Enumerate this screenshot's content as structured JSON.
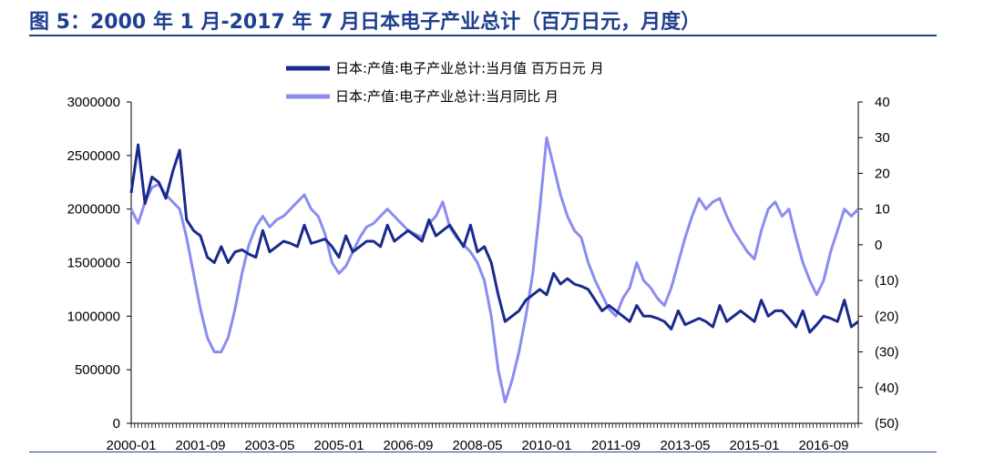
{
  "title": "图 5：2000 年 1 月-2017 年 7 月日本电子产业总计（百万日元，月度）",
  "colors": {
    "title": "#1f3f8f",
    "series_value": "#1a2a8c",
    "series_yoy": "#8a8cf0",
    "negative_tick": "#cc0000"
  },
  "chart_data": {
    "type": "line",
    "title": "图 5：2000 年 1 月-2017 年 7 月日本电子产业总计（百万日元，月度）",
    "x_range": [
      "2000-01",
      "2017-07"
    ],
    "x_tick_labels": [
      "2000-01",
      "2001-09",
      "2003-05",
      "2005-01",
      "2006-09",
      "2008-05",
      "2010-01",
      "2011-09",
      "2013-05",
      "2015-01",
      "2016-09"
    ],
    "y_left": {
      "range": [
        0,
        3000000
      ],
      "ticks": [
        "0",
        "500000",
        "1000000",
        "1500000",
        "2000000",
        "2500000",
        "3000000"
      ]
    },
    "y_right": {
      "range": [
        -50,
        40
      ],
      "ticks": [
        "(50)",
        "(40)",
        "(30)",
        "(20)",
        "(10)",
        "0",
        "10",
        "20",
        "30",
        "40"
      ]
    },
    "legend_position": "top-center",
    "grid": false,
    "series": [
      {
        "name": "日本:产值:电子产业总计:当月值 百万日元 月",
        "axis": "left",
        "points": [
          [
            "2000-01",
            2150000
          ],
          [
            "2000-03",
            2600000
          ],
          [
            "2000-05",
            2050000
          ],
          [
            "2000-07",
            2300000
          ],
          [
            "2000-09",
            2250000
          ],
          [
            "2000-11",
            2100000
          ],
          [
            "2001-01",
            2350000
          ],
          [
            "2001-03",
            2550000
          ],
          [
            "2001-05",
            1900000
          ],
          [
            "2001-07",
            1800000
          ],
          [
            "2001-09",
            1750000
          ],
          [
            "2001-11",
            1550000
          ],
          [
            "2002-01",
            1500000
          ],
          [
            "2002-03",
            1650000
          ],
          [
            "2002-05",
            1500000
          ],
          [
            "2002-07",
            1600000
          ],
          [
            "2002-09",
            1620000
          ],
          [
            "2002-11",
            1580000
          ],
          [
            "2003-01",
            1550000
          ],
          [
            "2003-03",
            1800000
          ],
          [
            "2003-05",
            1600000
          ],
          [
            "2003-07",
            1650000
          ],
          [
            "2003-09",
            1700000
          ],
          [
            "2003-11",
            1680000
          ],
          [
            "2004-01",
            1650000
          ],
          [
            "2004-03",
            1850000
          ],
          [
            "2004-05",
            1680000
          ],
          [
            "2004-07",
            1700000
          ],
          [
            "2004-09",
            1720000
          ],
          [
            "2004-11",
            1650000
          ],
          [
            "2005-01",
            1550000
          ],
          [
            "2005-03",
            1750000
          ],
          [
            "2005-05",
            1600000
          ],
          [
            "2005-07",
            1650000
          ],
          [
            "2005-09",
            1700000
          ],
          [
            "2005-11",
            1700000
          ],
          [
            "2006-01",
            1650000
          ],
          [
            "2006-03",
            1850000
          ],
          [
            "2006-05",
            1700000
          ],
          [
            "2006-07",
            1750000
          ],
          [
            "2006-09",
            1800000
          ],
          [
            "2006-11",
            1750000
          ],
          [
            "2007-01",
            1700000
          ],
          [
            "2007-03",
            1900000
          ],
          [
            "2007-05",
            1750000
          ],
          [
            "2007-07",
            1800000
          ],
          [
            "2007-09",
            1850000
          ],
          [
            "2007-11",
            1750000
          ],
          [
            "2008-01",
            1650000
          ],
          [
            "2008-03",
            1850000
          ],
          [
            "2008-05",
            1600000
          ],
          [
            "2008-07",
            1650000
          ],
          [
            "2008-09",
            1500000
          ],
          [
            "2008-11",
            1200000
          ],
          [
            "2009-01",
            950000
          ],
          [
            "2009-03",
            1000000
          ],
          [
            "2009-05",
            1050000
          ],
          [
            "2009-07",
            1150000
          ],
          [
            "2009-09",
            1200000
          ],
          [
            "2009-11",
            1250000
          ],
          [
            "2010-01",
            1200000
          ],
          [
            "2010-03",
            1400000
          ],
          [
            "2010-05",
            1300000
          ],
          [
            "2010-07",
            1350000
          ],
          [
            "2010-09",
            1300000
          ],
          [
            "2010-11",
            1280000
          ],
          [
            "2011-01",
            1250000
          ],
          [
            "2011-03",
            1150000
          ],
          [
            "2011-05",
            1050000
          ],
          [
            "2011-07",
            1100000
          ],
          [
            "2011-09",
            1050000
          ],
          [
            "2011-11",
            1000000
          ],
          [
            "2012-01",
            950000
          ],
          [
            "2012-03",
            1100000
          ],
          [
            "2012-05",
            1000000
          ],
          [
            "2012-07",
            1000000
          ],
          [
            "2012-09",
            980000
          ],
          [
            "2012-11",
            950000
          ],
          [
            "2013-01",
            880000
          ],
          [
            "2013-03",
            1050000
          ],
          [
            "2013-05",
            920000
          ],
          [
            "2013-07",
            950000
          ],
          [
            "2013-09",
            980000
          ],
          [
            "2013-11",
            950000
          ],
          [
            "2014-01",
            900000
          ],
          [
            "2014-03",
            1100000
          ],
          [
            "2014-05",
            950000
          ],
          [
            "2014-07",
            1000000
          ],
          [
            "2014-09",
            1050000
          ],
          [
            "2014-11",
            1000000
          ],
          [
            "2015-01",
            950000
          ],
          [
            "2015-03",
            1150000
          ],
          [
            "2015-05",
            1000000
          ],
          [
            "2015-07",
            1050000
          ],
          [
            "2015-09",
            1050000
          ],
          [
            "2015-11",
            980000
          ],
          [
            "2016-01",
            900000
          ],
          [
            "2016-03",
            1050000
          ],
          [
            "2016-05",
            850000
          ],
          [
            "2016-07",
            920000
          ],
          [
            "2016-09",
            1000000
          ],
          [
            "2016-11",
            980000
          ],
          [
            "2017-01",
            950000
          ],
          [
            "2017-03",
            1150000
          ],
          [
            "2017-05",
            900000
          ],
          [
            "2017-07",
            950000
          ]
        ]
      },
      {
        "name": "日本:产值:电子产业总计:当月同比 月",
        "axis": "right",
        "points": [
          [
            "2000-01",
            10
          ],
          [
            "2000-03",
            6
          ],
          [
            "2000-05",
            12
          ],
          [
            "2000-07",
            16
          ],
          [
            "2000-09",
            17
          ],
          [
            "2000-11",
            14
          ],
          [
            "2001-01",
            12
          ],
          [
            "2001-03",
            10
          ],
          [
            "2001-05",
            2
          ],
          [
            "2001-07",
            -8
          ],
          [
            "2001-09",
            -18
          ],
          [
            "2001-11",
            -26
          ],
          [
            "2002-01",
            -30
          ],
          [
            "2002-03",
            -30
          ],
          [
            "2002-05",
            -26
          ],
          [
            "2002-07",
            -18
          ],
          [
            "2002-09",
            -8
          ],
          [
            "2002-11",
            0
          ],
          [
            "2003-01",
            5
          ],
          [
            "2003-03",
            8
          ],
          [
            "2003-05",
            5
          ],
          [
            "2003-07",
            7
          ],
          [
            "2003-09",
            8
          ],
          [
            "2003-11",
            10
          ],
          [
            "2004-01",
            12
          ],
          [
            "2004-03",
            14
          ],
          [
            "2004-05",
            10
          ],
          [
            "2004-07",
            8
          ],
          [
            "2004-09",
            3
          ],
          [
            "2004-11",
            -5
          ],
          [
            "2005-01",
            -8
          ],
          [
            "2005-03",
            -6
          ],
          [
            "2005-05",
            -2
          ],
          [
            "2005-07",
            2
          ],
          [
            "2005-09",
            5
          ],
          [
            "2005-11",
            6
          ],
          [
            "2006-01",
            8
          ],
          [
            "2006-03",
            10
          ],
          [
            "2006-05",
            8
          ],
          [
            "2006-07",
            6
          ],
          [
            "2006-09",
            4
          ],
          [
            "2006-11",
            3
          ],
          [
            "2007-01",
            2
          ],
          [
            "2007-03",
            6
          ],
          [
            "2007-05",
            8
          ],
          [
            "2007-07",
            12
          ],
          [
            "2007-09",
            5
          ],
          [
            "2007-11",
            2
          ],
          [
            "2008-01",
            0
          ],
          [
            "2008-03",
            -2
          ],
          [
            "2008-05",
            -5
          ],
          [
            "2008-07",
            -10
          ],
          [
            "2008-09",
            -20
          ],
          [
            "2008-11",
            -35
          ],
          [
            "2009-01",
            -44
          ],
          [
            "2009-03",
            -38
          ],
          [
            "2009-05",
            -30
          ],
          [
            "2009-07",
            -20
          ],
          [
            "2009-09",
            -8
          ],
          [
            "2009-11",
            10
          ],
          [
            "2010-01",
            30
          ],
          [
            "2010-03",
            22
          ],
          [
            "2010-05",
            14
          ],
          [
            "2010-07",
            8
          ],
          [
            "2010-09",
            4
          ],
          [
            "2010-11",
            2
          ],
          [
            "2011-01",
            -5
          ],
          [
            "2011-03",
            -10
          ],
          [
            "2011-05",
            -14
          ],
          [
            "2011-07",
            -18
          ],
          [
            "2011-09",
            -20
          ],
          [
            "2011-11",
            -15
          ],
          [
            "2012-01",
            -12
          ],
          [
            "2012-03",
            -5
          ],
          [
            "2012-05",
            -10
          ],
          [
            "2012-07",
            -12
          ],
          [
            "2012-09",
            -15
          ],
          [
            "2012-11",
            -17
          ],
          [
            "2013-01",
            -12
          ],
          [
            "2013-03",
            -5
          ],
          [
            "2013-05",
            2
          ],
          [
            "2013-07",
            8
          ],
          [
            "2013-09",
            13
          ],
          [
            "2013-11",
            10
          ],
          [
            "2014-01",
            12
          ],
          [
            "2014-03",
            13
          ],
          [
            "2014-05",
            8
          ],
          [
            "2014-07",
            4
          ],
          [
            "2014-09",
            1
          ],
          [
            "2014-11",
            -2
          ],
          [
            "2015-01",
            -4
          ],
          [
            "2015-03",
            4
          ],
          [
            "2015-05",
            10
          ],
          [
            "2015-07",
            12
          ],
          [
            "2015-09",
            8
          ],
          [
            "2015-11",
            10
          ],
          [
            "2016-01",
            2
          ],
          [
            "2016-03",
            -5
          ],
          [
            "2016-05",
            -10
          ],
          [
            "2016-07",
            -14
          ],
          [
            "2016-09",
            -10
          ],
          [
            "2016-11",
            -2
          ],
          [
            "2017-01",
            4
          ],
          [
            "2017-03",
            10
          ],
          [
            "2017-05",
            8
          ],
          [
            "2017-07",
            10
          ]
        ]
      }
    ]
  }
}
